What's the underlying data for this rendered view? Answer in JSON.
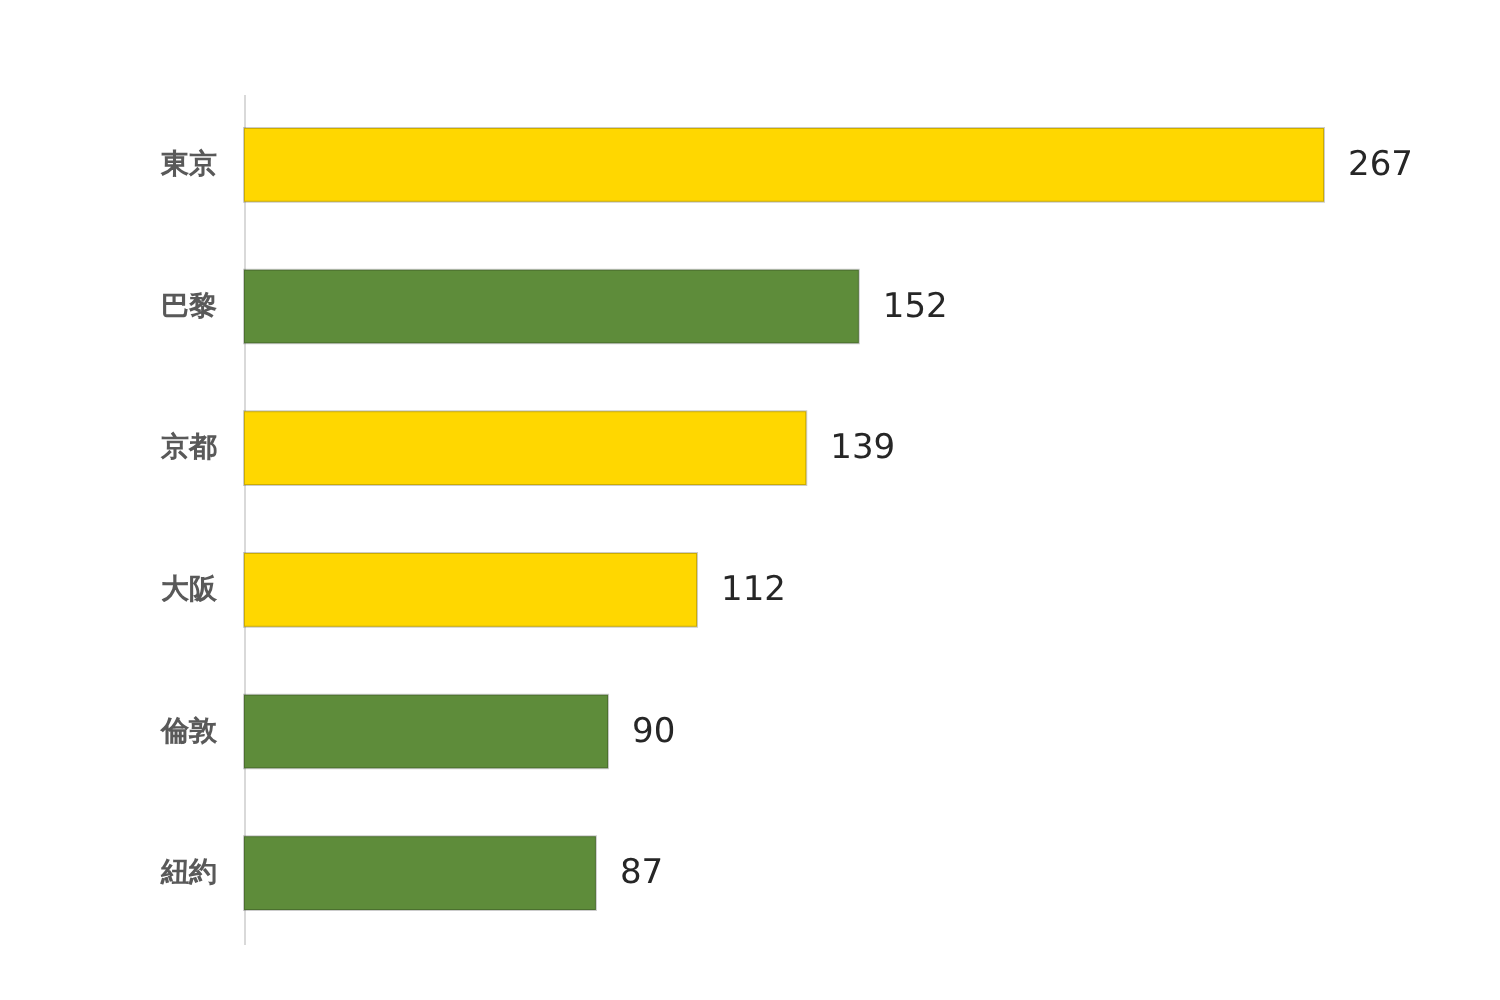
{
  "chart_data": {
    "type": "bar",
    "orientation": "horizontal",
    "categories": [
      "東京",
      "巴黎",
      "京都",
      "大阪",
      "倫敦",
      "紐約"
    ],
    "values": [
      267,
      152,
      139,
      112,
      90,
      87
    ],
    "colors": [
      "#ffd700",
      "#5e8c3a",
      "#ffd700",
      "#ffd700",
      "#5e8c3a",
      "#5e8c3a"
    ],
    "data_labels": true,
    "tick_labels": "y"
  }
}
